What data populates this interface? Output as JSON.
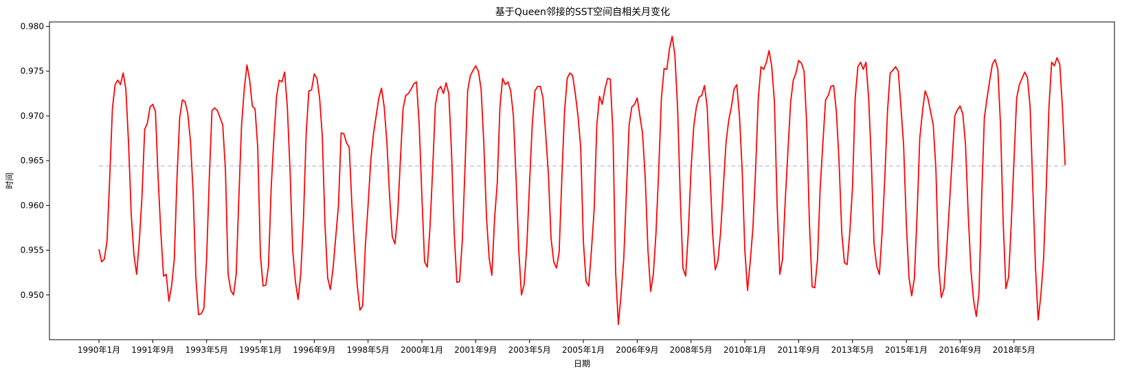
{
  "chart_data": {
    "type": "line",
    "title": "基于Queen邻接的SST空间自相关月变化",
    "xlabel": "日期",
    "ylabel": "时间",
    "ylim": [
      0.945,
      0.9805
    ],
    "y_ticks": [
      "0.950",
      "0.955",
      "0.960",
      "0.965",
      "0.970",
      "0.975",
      "0.980"
    ],
    "y_tick_values": [
      0.95,
      0.955,
      0.96,
      0.965,
      0.97,
      0.975,
      0.98
    ],
    "x_tick_labels": [
      "1990年1月",
      "1991年9月",
      "1993年5月",
      "1995年1月",
      "1996年9月",
      "1998年5月",
      "2000年1月",
      "2001年9月",
      "2003年5月",
      "2005年1月",
      "2006年9月",
      "2008年5月",
      "2010年1月",
      "2011年9月",
      "2013年5月",
      "2015年1月",
      "2016年9月",
      "2018年5月"
    ],
    "x_tick_month_index": [
      0,
      20,
      40,
      60,
      80,
      100,
      120,
      140,
      160,
      180,
      200,
      220,
      240,
      260,
      280,
      300,
      320,
      340
    ],
    "grid": false,
    "legend": "none",
    "mean_line": {
      "value": 0.9644,
      "color": "#c8c8f0",
      "style": "dashed"
    },
    "series": [
      {
        "color": "#ff0000",
        "x_start": "1990年1月",
        "x_step": "1 month",
        "values": [
          0.9551,
          0.9537,
          0.954,
          0.956,
          0.963,
          0.9708,
          0.9735,
          0.974,
          0.9735,
          0.9748,
          0.973,
          0.967,
          0.959,
          0.9545,
          0.9523,
          0.956,
          0.961,
          0.9685,
          0.9692,
          0.971,
          0.9713,
          0.9705,
          0.963,
          0.957,
          0.9521,
          0.9523,
          0.9493,
          0.951,
          0.954,
          0.963,
          0.9698,
          0.9718,
          0.9716,
          0.9703,
          0.9672,
          0.9615,
          0.952,
          0.9478,
          0.9479,
          0.9485,
          0.954,
          0.963,
          0.9706,
          0.9709,
          0.9706,
          0.9698,
          0.969,
          0.964,
          0.9523,
          0.9505,
          0.95,
          0.9523,
          0.961,
          0.969,
          0.973,
          0.9757,
          0.974,
          0.9711,
          0.9708,
          0.9665,
          0.9544,
          0.951,
          0.9511,
          0.9532,
          0.962,
          0.9675,
          0.9722,
          0.974,
          0.9738,
          0.9749,
          0.971,
          0.964,
          0.955,
          0.9515,
          0.9495,
          0.9524,
          0.9585,
          0.968,
          0.9728,
          0.9729,
          0.9747,
          0.9742,
          0.972,
          0.9677,
          0.9578,
          0.9519,
          0.9506,
          0.953,
          0.9565,
          0.96,
          0.9681,
          0.968,
          0.967,
          0.9665,
          0.96,
          0.955,
          0.951,
          0.9483,
          0.9488,
          0.9555,
          0.96,
          0.965,
          0.968,
          0.97,
          0.972,
          0.9731,
          0.971,
          0.967,
          0.961,
          0.9565,
          0.9557,
          0.959,
          0.965,
          0.9708,
          0.9723,
          0.9725,
          0.973,
          0.9736,
          0.9738,
          0.969,
          0.961,
          0.9537,
          0.9531,
          0.9575,
          0.964,
          0.9712,
          0.9729,
          0.9733,
          0.9725,
          0.9737,
          0.9725,
          0.966,
          0.957,
          0.9514,
          0.9515,
          0.956,
          0.964,
          0.9728,
          0.9745,
          0.9751,
          0.9756,
          0.975,
          0.973,
          0.967,
          0.9587,
          0.9541,
          0.9522,
          0.9585,
          0.9625,
          0.971,
          0.9742,
          0.9735,
          0.9738,
          0.9728,
          0.97,
          0.963,
          0.955,
          0.95,
          0.9512,
          0.9555,
          0.9625,
          0.969,
          0.9728,
          0.9733,
          0.9733,
          0.972,
          0.968,
          0.9635,
          0.9563,
          0.9537,
          0.953,
          0.9548,
          0.963,
          0.9705,
          0.9742,
          0.9748,
          0.9745,
          0.9725,
          0.97,
          0.9665,
          0.956,
          0.9515,
          0.951,
          0.955,
          0.9595,
          0.969,
          0.9722,
          0.9713,
          0.973,
          0.9742,
          0.9741,
          0.968,
          0.9525,
          0.9467,
          0.95,
          0.954,
          0.9615,
          0.969,
          0.971,
          0.9713,
          0.972,
          0.97,
          0.968,
          0.963,
          0.955,
          0.9504,
          0.9523,
          0.957,
          0.964,
          0.972,
          0.9753,
          0.9752,
          0.9775,
          0.9789,
          0.9768,
          0.971,
          0.961,
          0.953,
          0.9521,
          0.957,
          0.964,
          0.9688,
          0.971,
          0.9721,
          0.9723,
          0.9734,
          0.971,
          0.964,
          0.957,
          0.9528,
          0.9538,
          0.957,
          0.962,
          0.967,
          0.9695,
          0.971,
          0.973,
          0.9735,
          0.97,
          0.964,
          0.955,
          0.9505,
          0.9537,
          0.9575,
          0.964,
          0.972,
          0.9755,
          0.9752,
          0.976,
          0.9773,
          0.9755,
          0.9715,
          0.96,
          0.9523,
          0.954,
          0.9605,
          0.966,
          0.9715,
          0.974,
          0.9748,
          0.9762,
          0.9759,
          0.975,
          0.969,
          0.958,
          0.9509,
          0.9508,
          0.954,
          0.962,
          0.967,
          0.9718,
          0.9723,
          0.9733,
          0.9734,
          0.9705,
          0.965,
          0.957,
          0.9536,
          0.9534,
          0.957,
          0.962,
          0.972,
          0.9755,
          0.976,
          0.9752,
          0.976,
          0.972,
          0.965,
          0.9557,
          0.9532,
          0.9523,
          0.957,
          0.963,
          0.9705,
          0.9748,
          0.9751,
          0.9755,
          0.975,
          0.971,
          0.9667,
          0.958,
          0.9519,
          0.9499,
          0.9519,
          0.959,
          0.9675,
          0.9705,
          0.9728,
          0.972,
          0.9705,
          0.969,
          0.964,
          0.9533,
          0.9497,
          0.9507,
          0.955,
          0.96,
          0.965,
          0.97,
          0.9707,
          0.9711,
          0.9702,
          0.9668,
          0.959,
          0.9528,
          0.9494,
          0.9476,
          0.9502,
          0.961,
          0.9698,
          0.972,
          0.974,
          0.9758,
          0.9763,
          0.9752,
          0.969,
          0.958,
          0.9507,
          0.952,
          0.958,
          0.965,
          0.972,
          0.9735,
          0.9742,
          0.9749,
          0.9743,
          0.971,
          0.962,
          0.953,
          0.9472,
          0.95,
          0.954,
          0.962,
          0.971,
          0.976,
          0.9756,
          0.9765,
          0.9758,
          0.971,
          0.9645
        ]
      }
    ]
  }
}
